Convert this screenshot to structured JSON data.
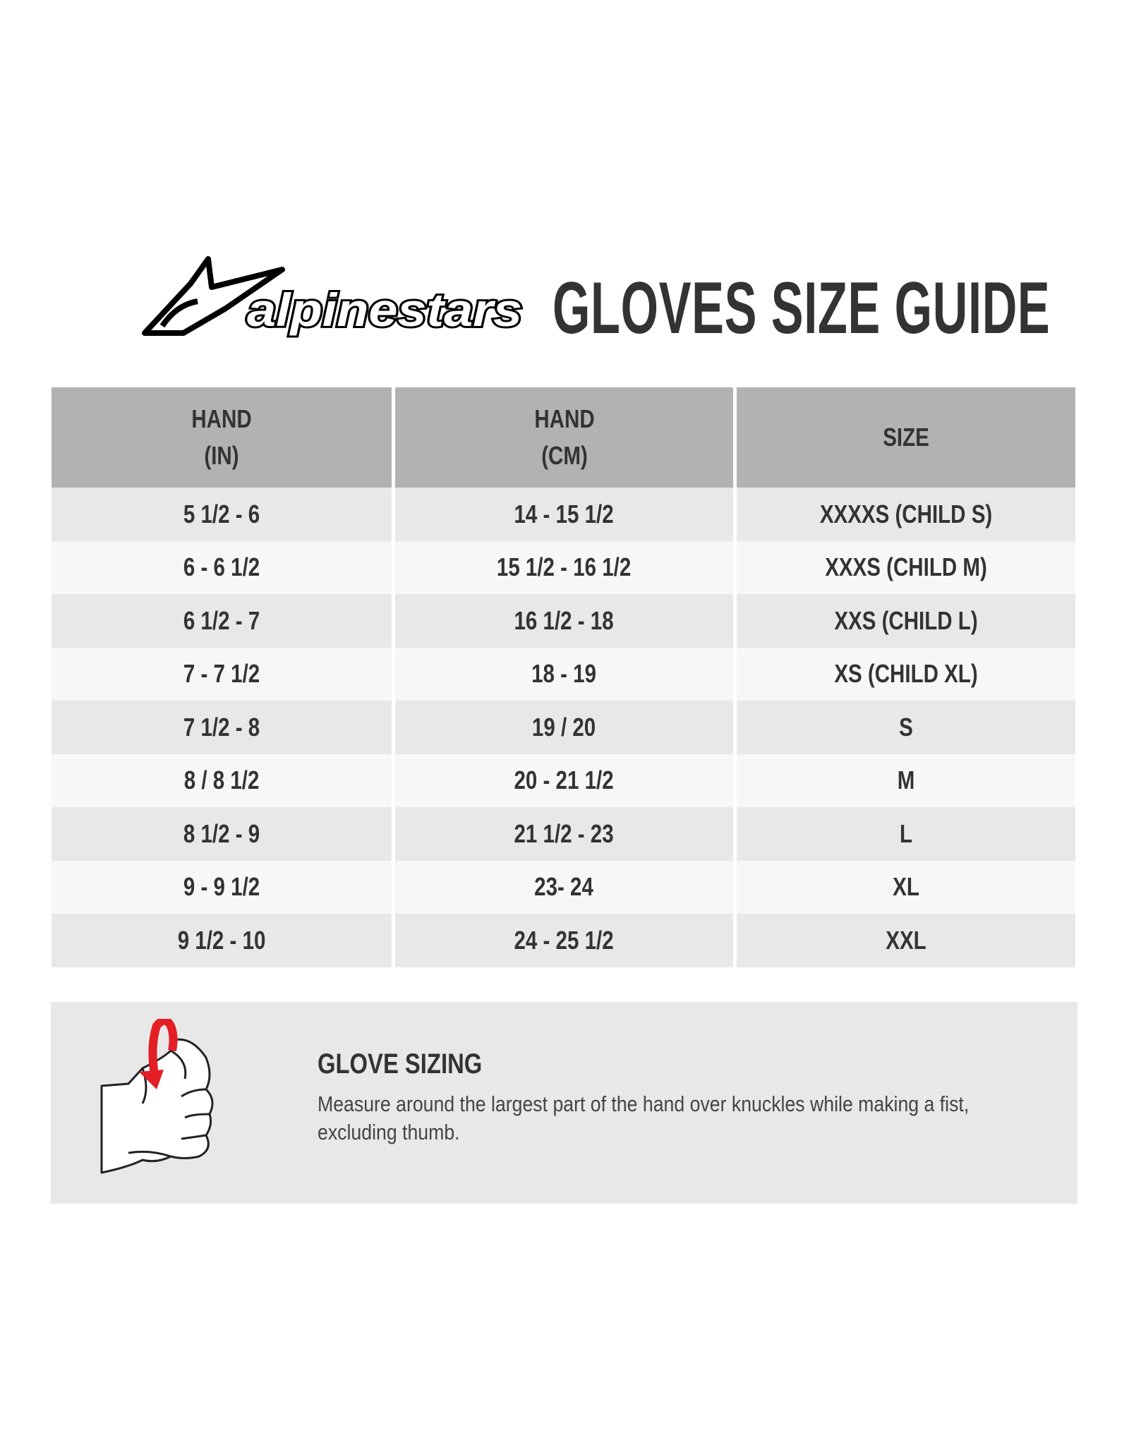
{
  "brand": {
    "logo_text": "alpinestars",
    "accent_color": "#e31e24"
  },
  "title": "GLOVES SIZE GUIDE",
  "table": {
    "headers": [
      [
        "HAND",
        "(IN)"
      ],
      [
        "HAND",
        "(CM)"
      ],
      [
        "SIZE"
      ]
    ],
    "rows": [
      [
        "5 1/2 - 6",
        "14 - 15 1/2",
        "XXXXS (CHILD S)"
      ],
      [
        "6 - 6 1/2",
        "15 1/2 - 16 1/2",
        "XXXS (CHILD M)"
      ],
      [
        "6 1/2 - 7",
        "16 1/2 - 18",
        "XXS (CHILD L)"
      ],
      [
        "7 - 7 1/2",
        "18 - 19",
        "XS (CHILD XL)"
      ],
      [
        "7 1/2 - 8",
        "19 / 20",
        "S"
      ],
      [
        "8 / 8 1/2",
        "20 - 21 1/2",
        "M"
      ],
      [
        "8 1/2 - 9",
        "21 1/2 - 23",
        "L"
      ],
      [
        "9 - 9 1/2",
        "23- 24",
        "XL"
      ],
      [
        "9 1/2 - 10",
        "24 - 25 1/2",
        "XXL"
      ]
    ]
  },
  "glove_sizing": {
    "icon": "fist-measure-icon",
    "title": "GLOVE SIZING",
    "body": "Measure around the largest part of the hand over knuckles while making a fist, excluding thumb."
  }
}
